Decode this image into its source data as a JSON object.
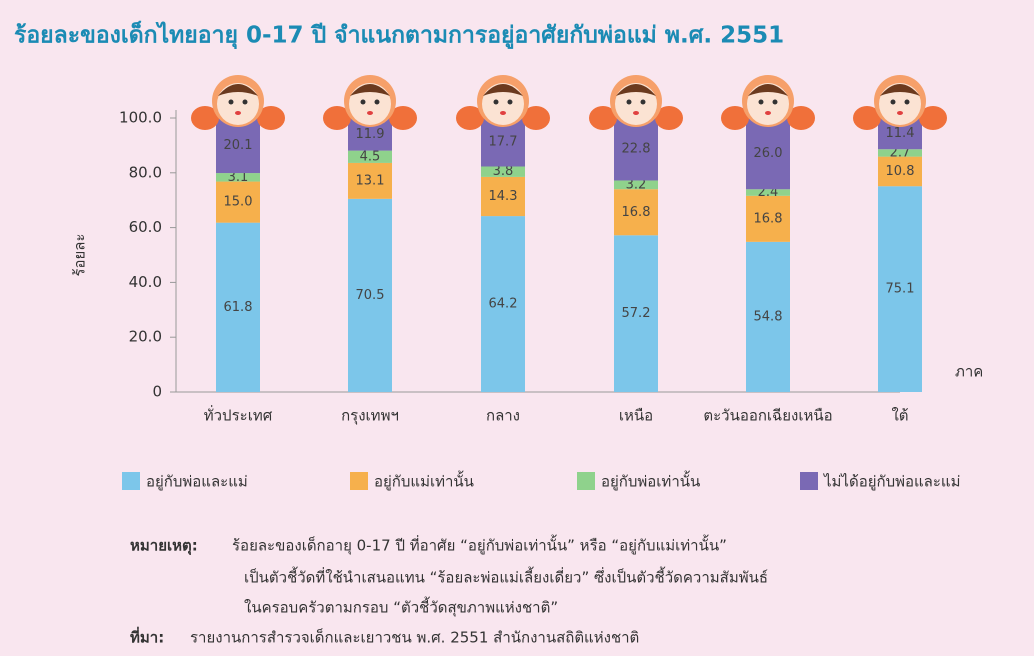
{
  "chart_data": {
    "type": "stacked-bar",
    "title": "ร้อยละของเด็กไทยอายุ 0-17 ปี จำแนกตามการอยู่อาศัยกับพ่อแม่ พ.ศ. 2551",
    "y_label": "ร้อยละ",
    "x_label": "ภาค",
    "categories": [
      "ทั่วประเทศ",
      "กรุงเทพฯ",
      "กลาง",
      "เหนือ",
      "ตะวันออกเฉียงเหนือ",
      "ใต้"
    ],
    "series": [
      {
        "name": "อยู่กับพ่อและแม่",
        "color": "#7cc6ea",
        "values": [
          61.8,
          70.5,
          64.2,
          57.2,
          54.8,
          75.1
        ],
        "value_labels": [
          "61.8",
          "70.5",
          "64.2",
          "57.2",
          "54.8",
          "75.1"
        ]
      },
      {
        "name": "อยู่กับแม่เท่านั้น",
        "color": "#f6b04c",
        "values": [
          15,
          13.1,
          14.3,
          16.8,
          16.8,
          10.8
        ],
        "value_labels": [
          "15.0",
          "13.1",
          "14.3",
          "16.8",
          "16.8",
          "10.8"
        ]
      },
      {
        "name": "อยู่กับพ่อเท่านั้น",
        "color": "#8fd28c",
        "values": [
          3.1,
          4.5,
          3.8,
          3.2,
          2.4,
          2.7
        ],
        "value_labels": [
          "3.1",
          "4.5",
          "3.8",
          "3.2",
          "2.4",
          "2.7"
        ]
      },
      {
        "name": "ไม่ได้อยู่กับพ่อและแม่",
        "color": "#7a69b4",
        "values": [
          20.1,
          11.9,
          17.7,
          22.8,
          26,
          11.4
        ],
        "value_labels": [
          "20.1",
          "11.9",
          "17.7",
          "22.8",
          "26.0",
          "11.4"
        ]
      }
    ],
    "ylim": [
      0,
      100
    ],
    "yticks": [
      0,
      {
        "value": 20,
        "label": "20.0"
      },
      {
        "value": 40,
        "label": "40.0"
      },
      {
        "value": 60,
        "label": "60.0"
      },
      {
        "value": 80,
        "label": "80.0"
      },
      {
        "value": 100,
        "label": "100.0"
      }
    ]
  },
  "note": {
    "label": "หมายเหตุ:",
    "lines": [
      "ร้อยละของเด็กอายุ 0-17 ปี ที่อาศัย “อยู่กับพ่อเท่านั้น” หรือ “อยู่กับแม่เท่านั้น”",
      "เป็นตัวชี้วัดที่ใช้นำเสนอแทน “ร้อยละพ่อแม่เลี้ยงเดี่ยว” ซึ่งเป็นตัวชี้วัดความสัมพันธ์",
      "ในครอบครัวตามกรอบ “ตัวชี้วัดสุขภาพแห่งชาติ”"
    ]
  },
  "source": {
    "label": "ที่มา:",
    "text": "รายงานการสำรวจเด็กและเยาวชน พ.ศ. 2551 สำนักงานสถิติแห่งชาติ"
  }
}
